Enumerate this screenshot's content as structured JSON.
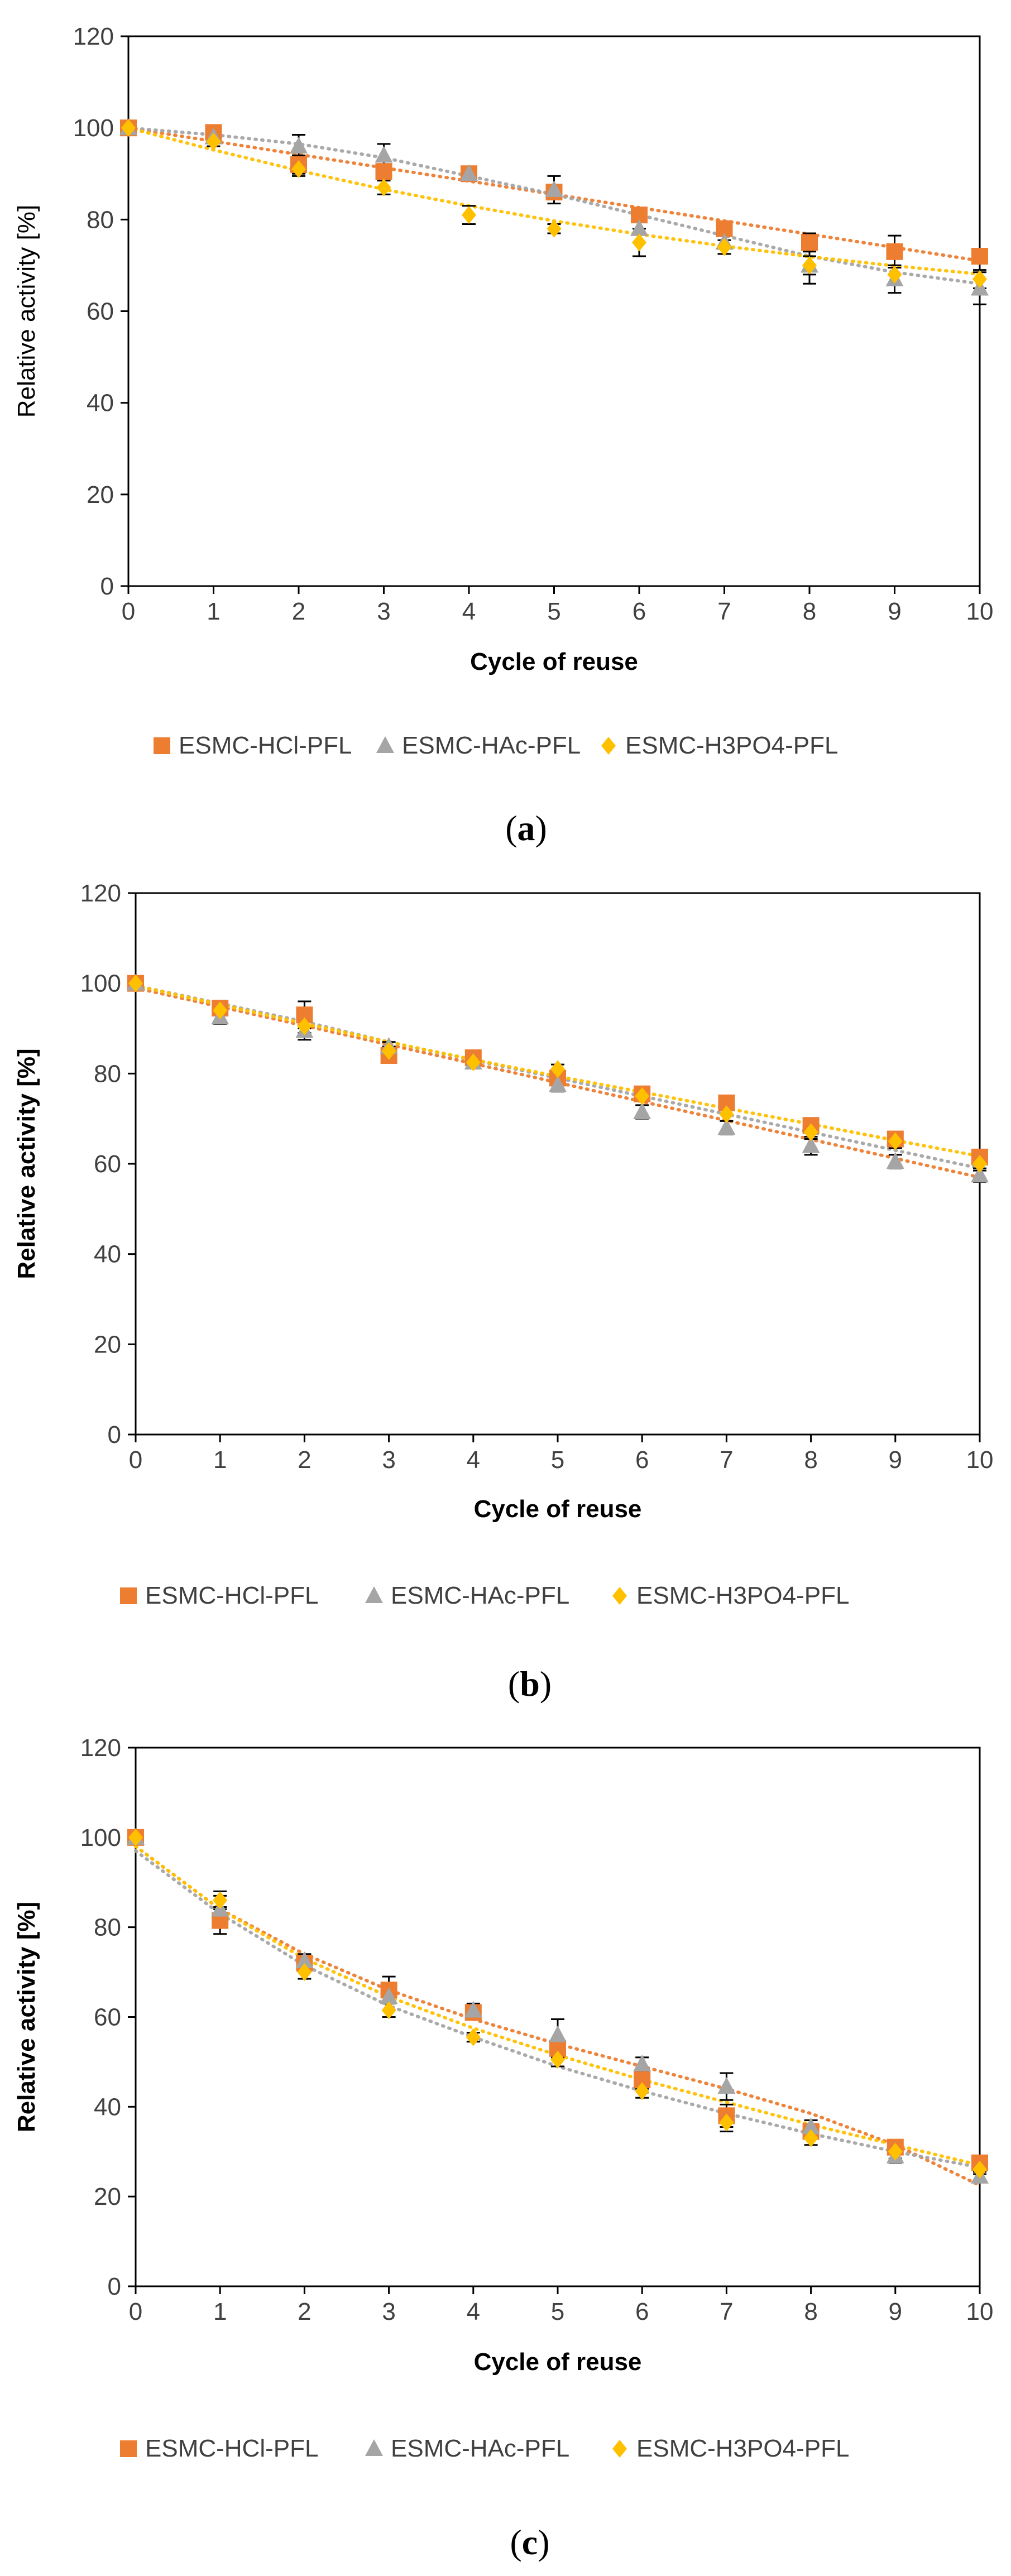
{
  "chart_data": [
    {
      "type": "scatter",
      "panel": "a",
      "caption": "a",
      "xlabel": "Cycle of reuse",
      "ylabel": "Relative activity [%]",
      "xlabel_bold": true,
      "ylabel_bold": false,
      "xlim": [
        0,
        10
      ],
      "ylim": [
        0,
        120
      ],
      "xticks": [
        0,
        1,
        2,
        3,
        4,
        5,
        6,
        7,
        8,
        9,
        10
      ],
      "yticks": [
        0,
        20,
        40,
        60,
        80,
        100,
        120
      ],
      "grid": false,
      "legend_position": "bottom",
      "series": [
        {
          "name": "ESMC-HCl-PFL",
          "marker": "square",
          "color": "#ED7D31",
          "x": [
            0,
            1,
            2,
            3,
            4,
            5,
            6,
            7,
            8,
            9,
            10
          ],
          "values": [
            100,
            99,
            92,
            90.5,
            90,
            86,
            81,
            78,
            75,
            73,
            72
          ],
          "errors": [
            0,
            1,
            2,
            1.5,
            1,
            1.5,
            1.5,
            1.5,
            2,
            3.5,
            1.5
          ],
          "trend": [
            100,
            97.1,
            94.2,
            91.3,
            88.4,
            85.5,
            82.6,
            79.7,
            76.8,
            73.9,
            71
          ]
        },
        {
          "name": "ESMC-HAc-PFL",
          "marker": "triangle",
          "color": "#A5A5A5",
          "x": [
            0,
            1,
            2,
            3,
            4,
            5,
            6,
            7,
            8,
            9,
            10
          ],
          "values": [
            100,
            98,
            96,
            94,
            90,
            86.5,
            78,
            75,
            70,
            67,
            65
          ],
          "errors": [
            0,
            1,
            2.5,
            2.5,
            1.5,
            3,
            3,
            2.5,
            4,
            3,
            3.5
          ],
          "trend": [
            100,
            98.5,
            96.5,
            93.5,
            89.5,
            85.5,
            81,
            76.5,
            72,
            68.5,
            66
          ]
        },
        {
          "name": "ESMC-H3PO4-PFL",
          "marker": "diamond",
          "color": "#FFC000",
          "x": [
            0,
            1,
            2,
            3,
            4,
            5,
            6,
            7,
            8,
            9,
            10
          ],
          "values": [
            100,
            97,
            91,
            87,
            81,
            78,
            75,
            74,
            70,
            68,
            67
          ],
          "errors": [
            0,
            1,
            1.5,
            1.5,
            2,
            1,
            3,
            1.5,
            2,
            2,
            2
          ],
          "trend": [
            100,
            95.2,
            90.7,
            86.6,
            83,
            79.7,
            76.8,
            74.2,
            71.9,
            69.9,
            68.1
          ]
        }
      ]
    },
    {
      "type": "scatter",
      "panel": "b",
      "caption": "b",
      "xlabel": "Cycle of reuse",
      "ylabel": "Relative activity [%]",
      "xlabel_bold": true,
      "ylabel_bold": true,
      "xlim": [
        0,
        10
      ],
      "ylim": [
        0,
        120
      ],
      "xticks": [
        0,
        1,
        2,
        3,
        4,
        5,
        6,
        7,
        8,
        9,
        10
      ],
      "yticks": [
        0,
        20,
        40,
        60,
        80,
        100,
        120
      ],
      "grid": false,
      "legend_position": "bottom",
      "series": [
        {
          "name": "ESMC-HCl-PFL",
          "marker": "square",
          "color": "#ED7D31",
          "x": [
            0,
            1,
            2,
            3,
            4,
            5,
            6,
            7,
            8,
            9,
            10
          ],
          "values": [
            100,
            94.5,
            93,
            84,
            83.5,
            79,
            75.5,
            73.5,
            68.5,
            65.5,
            61.5
          ],
          "errors": [
            0,
            1,
            3,
            1,
            1,
            1,
            1,
            1.5,
            1.5,
            1.5,
            1
          ],
          "trend": [
            99,
            94.8,
            90.6,
            86.4,
            82.2,
            78,
            73.8,
            69.6,
            65.4,
            61.2,
            57
          ]
        },
        {
          "name": "ESMC-HAc-PFL",
          "marker": "triangle",
          "color": "#A5A5A5",
          "x": [
            0,
            1,
            2,
            3,
            4,
            5,
            6,
            7,
            8,
            9,
            10
          ],
          "values": [
            100,
            92.5,
            89.5,
            86,
            82.5,
            77.5,
            71.5,
            68,
            64,
            60.5,
            57.5
          ],
          "errors": [
            0,
            1.5,
            2,
            1,
            1,
            1.5,
            1.5,
            1.5,
            2,
            1.5,
            1.5
          ],
          "trend": [
            99.5,
            95.5,
            91.5,
            87,
            83,
            79,
            75,
            71,
            67,
            63,
            59
          ]
        },
        {
          "name": "ESMC-H3PO4-PFL",
          "marker": "diamond",
          "color": "#FFC000",
          "x": [
            0,
            1,
            2,
            3,
            4,
            5,
            6,
            7,
            8,
            9,
            10
          ],
          "values": [
            100,
            94,
            90.5,
            85,
            82.5,
            81,
            75,
            71,
            67,
            65,
            60
          ],
          "errors": [
            0,
            1,
            1.5,
            1,
            1,
            1,
            1,
            1.5,
            1.5,
            1.5,
            1.5
          ],
          "trend": [
            99.5,
            95.3,
            91.1,
            87,
            83.1,
            79.4,
            75.9,
            72.3,
            68.8,
            65.2,
            61.7
          ]
        }
      ]
    },
    {
      "type": "scatter",
      "panel": "c",
      "caption": "c",
      "xlabel": "Cycle of reuse",
      "ylabel": "Relative activity [%]",
      "xlabel_bold": true,
      "ylabel_bold": true,
      "xlim": [
        0,
        10
      ],
      "ylim": [
        0,
        120
      ],
      "xticks": [
        0,
        1,
        2,
        3,
        4,
        5,
        6,
        7,
        8,
        9,
        10
      ],
      "yticks": [
        0,
        20,
        40,
        60,
        80,
        100,
        120
      ],
      "grid": false,
      "legend_position": "bottom",
      "series": [
        {
          "name": "ESMC-HCl-PFL",
          "marker": "square",
          "color": "#ED7D31",
          "x": [
            0,
            1,
            2,
            3,
            4,
            5,
            6,
            7,
            8,
            9,
            10
          ],
          "values": [
            100,
            81.5,
            72,
            66,
            61,
            53,
            46,
            38,
            34.5,
            31,
            27.5
          ],
          "errors": [
            0,
            3,
            2,
            3,
            1.5,
            2,
            2,
            2.5,
            1.5,
            1.5,
            1
          ],
          "trend": [
            98,
            84,
            74,
            66,
            59.5,
            54,
            49,
            44,
            38.5,
            31.5,
            22.5
          ]
        },
        {
          "name": "ESMC-HAc-PFL",
          "marker": "triangle",
          "color": "#A5A5A5",
          "x": [
            0,
            1,
            2,
            3,
            4,
            5,
            6,
            7,
            8,
            9,
            10
          ],
          "values": [
            100,
            84,
            72.5,
            64.5,
            61.5,
            56,
            49.5,
            44.5,
            35.5,
            29,
            24.5
          ],
          "errors": [
            0,
            3,
            1.5,
            3,
            1.5,
            3.5,
            1.5,
            3,
            1.5,
            1.5,
            1
          ],
          "trend": [
            97,
            83,
            71.5,
            62.5,
            55.5,
            49,
            43.5,
            38.5,
            34,
            30,
            26.5
          ]
        },
        {
          "name": "ESMC-H3PO4-PFL",
          "marker": "diamond",
          "color": "#FFC000",
          "x": [
            0,
            1,
            2,
            3,
            4,
            5,
            6,
            7,
            8,
            9,
            10
          ],
          "values": [
            100,
            86,
            70,
            61.5,
            55.5,
            50.5,
            43.5,
            36.5,
            33,
            30,
            26
          ],
          "errors": [
            0,
            2,
            1.5,
            1.5,
            1,
            1.5,
            1.5,
            2,
            1.5,
            1.5,
            1
          ],
          "trend": [
            98,
            84,
            73,
            64.5,
            57.5,
            51.5,
            46,
            41,
            36,
            31.5,
            27
          ]
        }
      ]
    }
  ]
}
